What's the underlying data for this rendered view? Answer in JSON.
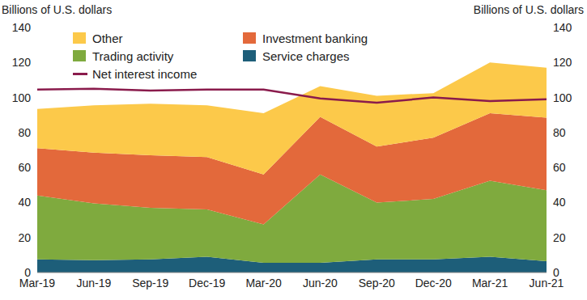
{
  "chart_data": {
    "type": "area",
    "stacked": true,
    "ylabel": "Billions of U.S. dollars",
    "y2label": "Billions of U.S. dollars",
    "categories": [
      "Mar-19",
      "Jun-19",
      "Sep-19",
      "Dec-19",
      "Mar-20",
      "Jun-20",
      "Sep-20",
      "Dec-20",
      "Mar-21",
      "Jun-21"
    ],
    "ylim": [
      0,
      140
    ],
    "yticks": [
      0,
      20,
      40,
      60,
      80,
      100,
      120,
      140
    ],
    "y2lim": [
      0,
      140
    ],
    "y2ticks": [
      0,
      20,
      40,
      60,
      80,
      100,
      120,
      140
    ],
    "grid": false,
    "legend": "upper left",
    "series": [
      {
        "name": "Other",
        "type": "area",
        "color": "#fcc94a",
        "values": [
          22.5,
          27,
          29.5,
          29.5,
          35,
          17.5,
          29,
          25.5,
          29,
          28.5
        ]
      },
      {
        "name": "Investment banking",
        "type": "area",
        "color": "#e3693b",
        "values": [
          27,
          29,
          30,
          30,
          28.5,
          33,
          32,
          35,
          38.5,
          41.5
        ]
      },
      {
        "name": "Trading activity",
        "type": "area",
        "color": "#7faa3e",
        "values": [
          36.5,
          32.5,
          29.5,
          27,
          22,
          50.5,
          32.5,
          34.5,
          43.5,
          40.5
        ]
      },
      {
        "name": "Service charges",
        "type": "area",
        "color": "#1d5e79",
        "values": [
          7.5,
          7,
          7.5,
          9,
          5.5,
          5.5,
          7.5,
          7.5,
          9,
          6.5
        ]
      },
      {
        "name": "Net interest income",
        "type": "line",
        "axis": "y2",
        "color": "#8a1b4c",
        "values": [
          104.5,
          105,
          104,
          104.5,
          104.5,
          99.5,
          97,
          100,
          98,
          99
        ]
      }
    ]
  }
}
